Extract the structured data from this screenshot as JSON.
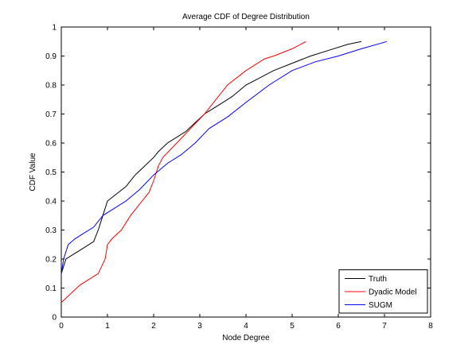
{
  "chart_data": {
    "type": "line",
    "title": "Average CDF of Degree Distribution",
    "xlabel": "Node Degree",
    "ylabel": "CDF Value",
    "xlim": [
      0,
      8
    ],
    "ylim": [
      0,
      1
    ],
    "xticks": [
      "0",
      "1",
      "2",
      "3",
      "4",
      "5",
      "6",
      "7",
      "8"
    ],
    "yticks": [
      "0",
      "0.1",
      "0.2",
      "0.3",
      "0.4",
      "0.5",
      "0.6",
      "0.7",
      "0.8",
      "0.9",
      "1"
    ],
    "grid": false,
    "legend_position": "bottom-right",
    "series": [
      {
        "name": "Truth",
        "color": "#000000",
        "x": [
          0,
          0.1,
          0.3,
          0.5,
          0.7,
          0.8,
          0.9,
          1.0,
          1.2,
          1.4,
          1.6,
          1.8,
          2.0,
          2.1,
          2.3,
          2.5,
          2.7,
          2.9,
          3.1,
          3.3,
          3.5,
          3.7,
          4.0,
          4.3,
          4.6,
          5.0,
          5.4,
          5.8,
          6.2,
          6.5
        ],
        "y": [
          0.15,
          0.2,
          0.22,
          0.24,
          0.26,
          0.3,
          0.35,
          0.4,
          0.425,
          0.45,
          0.49,
          0.52,
          0.55,
          0.57,
          0.6,
          0.62,
          0.64,
          0.67,
          0.7,
          0.72,
          0.74,
          0.76,
          0.8,
          0.825,
          0.85,
          0.875,
          0.9,
          0.92,
          0.94,
          0.95
        ]
      },
      {
        "name": "Dyadic Model",
        "color": "#ff0000",
        "x": [
          0,
          0.2,
          0.4,
          0.6,
          0.8,
          0.95,
          1.0,
          1.1,
          1.3,
          1.5,
          1.7,
          1.9,
          2.0,
          2.1,
          2.2,
          2.5,
          2.8,
          3.1,
          3.3,
          3.6,
          4.0,
          4.4,
          4.6,
          5.0,
          5.3
        ],
        "y": [
          0.05,
          0.08,
          0.11,
          0.13,
          0.15,
          0.2,
          0.25,
          0.27,
          0.3,
          0.35,
          0.39,
          0.43,
          0.47,
          0.52,
          0.55,
          0.6,
          0.65,
          0.7,
          0.74,
          0.8,
          0.85,
          0.89,
          0.9,
          0.925,
          0.95
        ]
      },
      {
        "name": "SUGM",
        "color": "#0000ff",
        "x": [
          0,
          0.05,
          0.15,
          0.3,
          0.5,
          0.7,
          0.9,
          1.1,
          1.4,
          1.7,
          2.0,
          2.3,
          2.6,
          2.9,
          3.2,
          3.6,
          4.0,
          4.5,
          5.0,
          5.5,
          6.0,
          6.5,
          7.05
        ],
        "y": [
          0.15,
          0.2,
          0.25,
          0.27,
          0.29,
          0.31,
          0.35,
          0.37,
          0.4,
          0.44,
          0.49,
          0.53,
          0.56,
          0.6,
          0.65,
          0.69,
          0.74,
          0.8,
          0.85,
          0.88,
          0.9,
          0.925,
          0.95
        ]
      }
    ]
  }
}
